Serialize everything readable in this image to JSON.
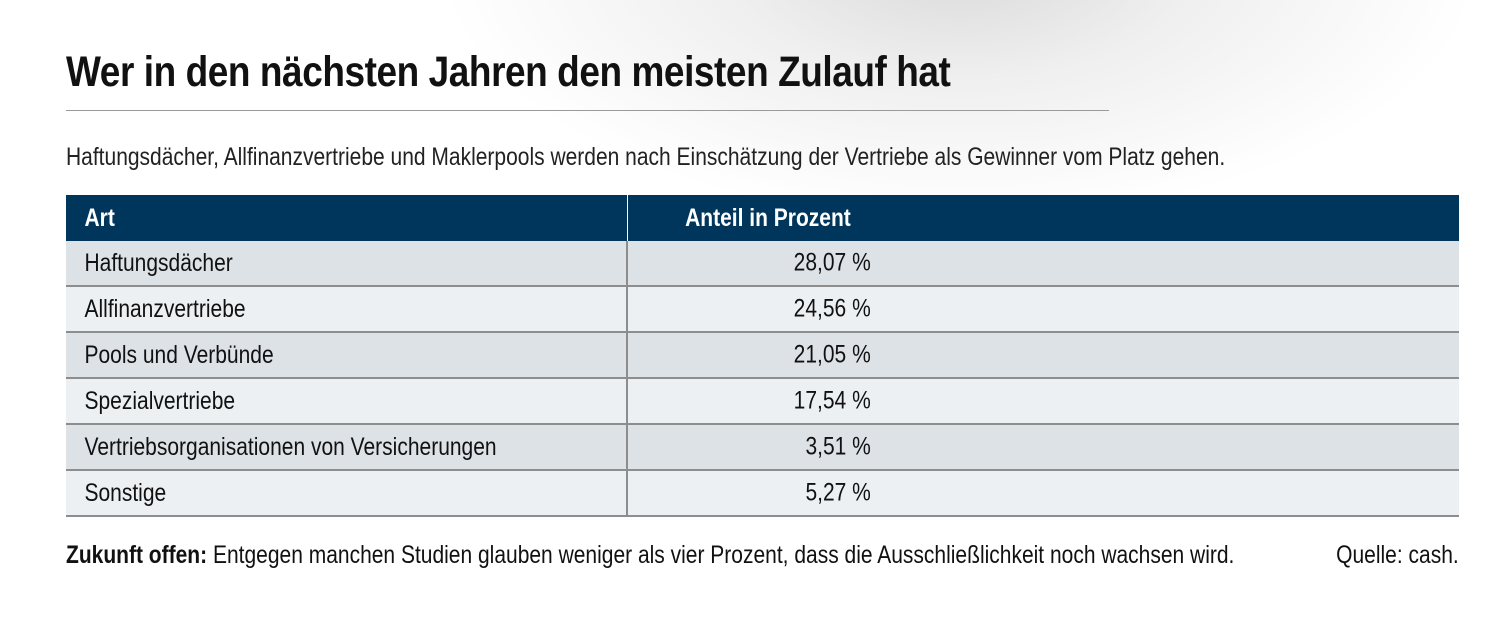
{
  "title": "Wer in den nächsten Jahren den meisten Zulauf hat",
  "subtitle": "Haftungsdächer, Allfinanzvertriebe und Maklerpools werden nach Einschätzung der Vertriebe als Gewinner vom Platz gehen.",
  "chart_data": {
    "type": "table",
    "columns": [
      "Art",
      "Anteil in Prozent"
    ],
    "rows": [
      {
        "category": "Haftungsdächer",
        "value": 28.07,
        "label": "28,07 %"
      },
      {
        "category": "Allfinanzvertriebe",
        "value": 24.56,
        "label": "24,56 %"
      },
      {
        "category": "Pools und Verbünde",
        "value": 21.05,
        "label": "21,05 %"
      },
      {
        "category": "Spezialvertriebe",
        "value": 17.54,
        "label": "17,54 %"
      },
      {
        "category": "Vertriebsorganisationen von Versicherungen",
        "value": 3.51,
        "label": "3,51 %"
      },
      {
        "category": "Sonstige",
        "value": 5.27,
        "label": "5,27 %"
      }
    ]
  },
  "footer": {
    "lead": "Zukunft offen:",
    "text": " Entgegen manchen Studien glauben weniger als vier Prozent, dass die Ausschließlichkeit noch wachsen wird.",
    "source": "Quelle: cash."
  },
  "colors": {
    "header_bg": "#00355c",
    "row_odd": "#dde2e7",
    "row_even": "#edf0f3"
  }
}
